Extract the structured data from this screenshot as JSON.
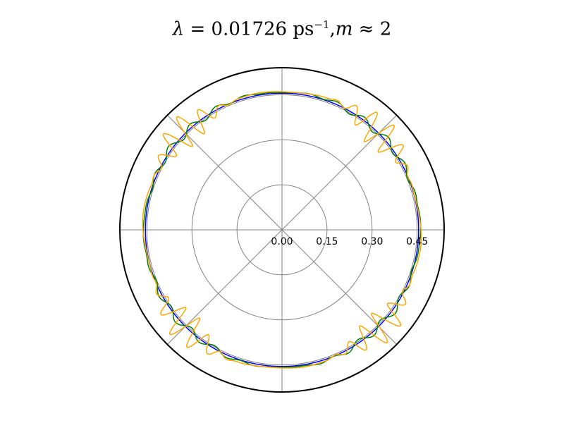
{
  "chart_data": {
    "type": "line",
    "projection": "polar",
    "title": {
      "lambda_symbol": "λ",
      "equals": "=",
      "lambda_value": "0.01726",
      "unit": "ps",
      "unit_exponent": "−1",
      "separator": ",",
      "m_symbol": "m",
      "approx": "≈",
      "m_value": "2"
    },
    "r_ticks": [
      0.0,
      0.15,
      0.3,
      0.45
    ],
    "r_tick_labels": [
      "0.00",
      "0.15",
      "0.30",
      "0.45"
    ],
    "r_max": 0.54,
    "theta_gridlines_deg": [
      0,
      45,
      90,
      135,
      180,
      225,
      270,
      315
    ],
    "grid": true,
    "series": [
      {
        "color": "#0000ff",
        "r_base": 0.455,
        "r_amp": 0.0,
        "amp_pow": 1,
        "ripples": 0,
        "ripple_phase": 0,
        "jitter": 0
      },
      {
        "color": "#008000",
        "r_base": 0.458,
        "r_amp": 0.012,
        "amp_pow": 2,
        "ripples": 28,
        "ripple_phase": 0.4,
        "jitter": 0.004
      },
      {
        "color": "#ffa500",
        "r_base": 0.46,
        "r_amp": 0.055,
        "amp_pow": 8,
        "ripples": 44,
        "ripple_phase": 0,
        "jitter": 0.006
      }
    ]
  }
}
